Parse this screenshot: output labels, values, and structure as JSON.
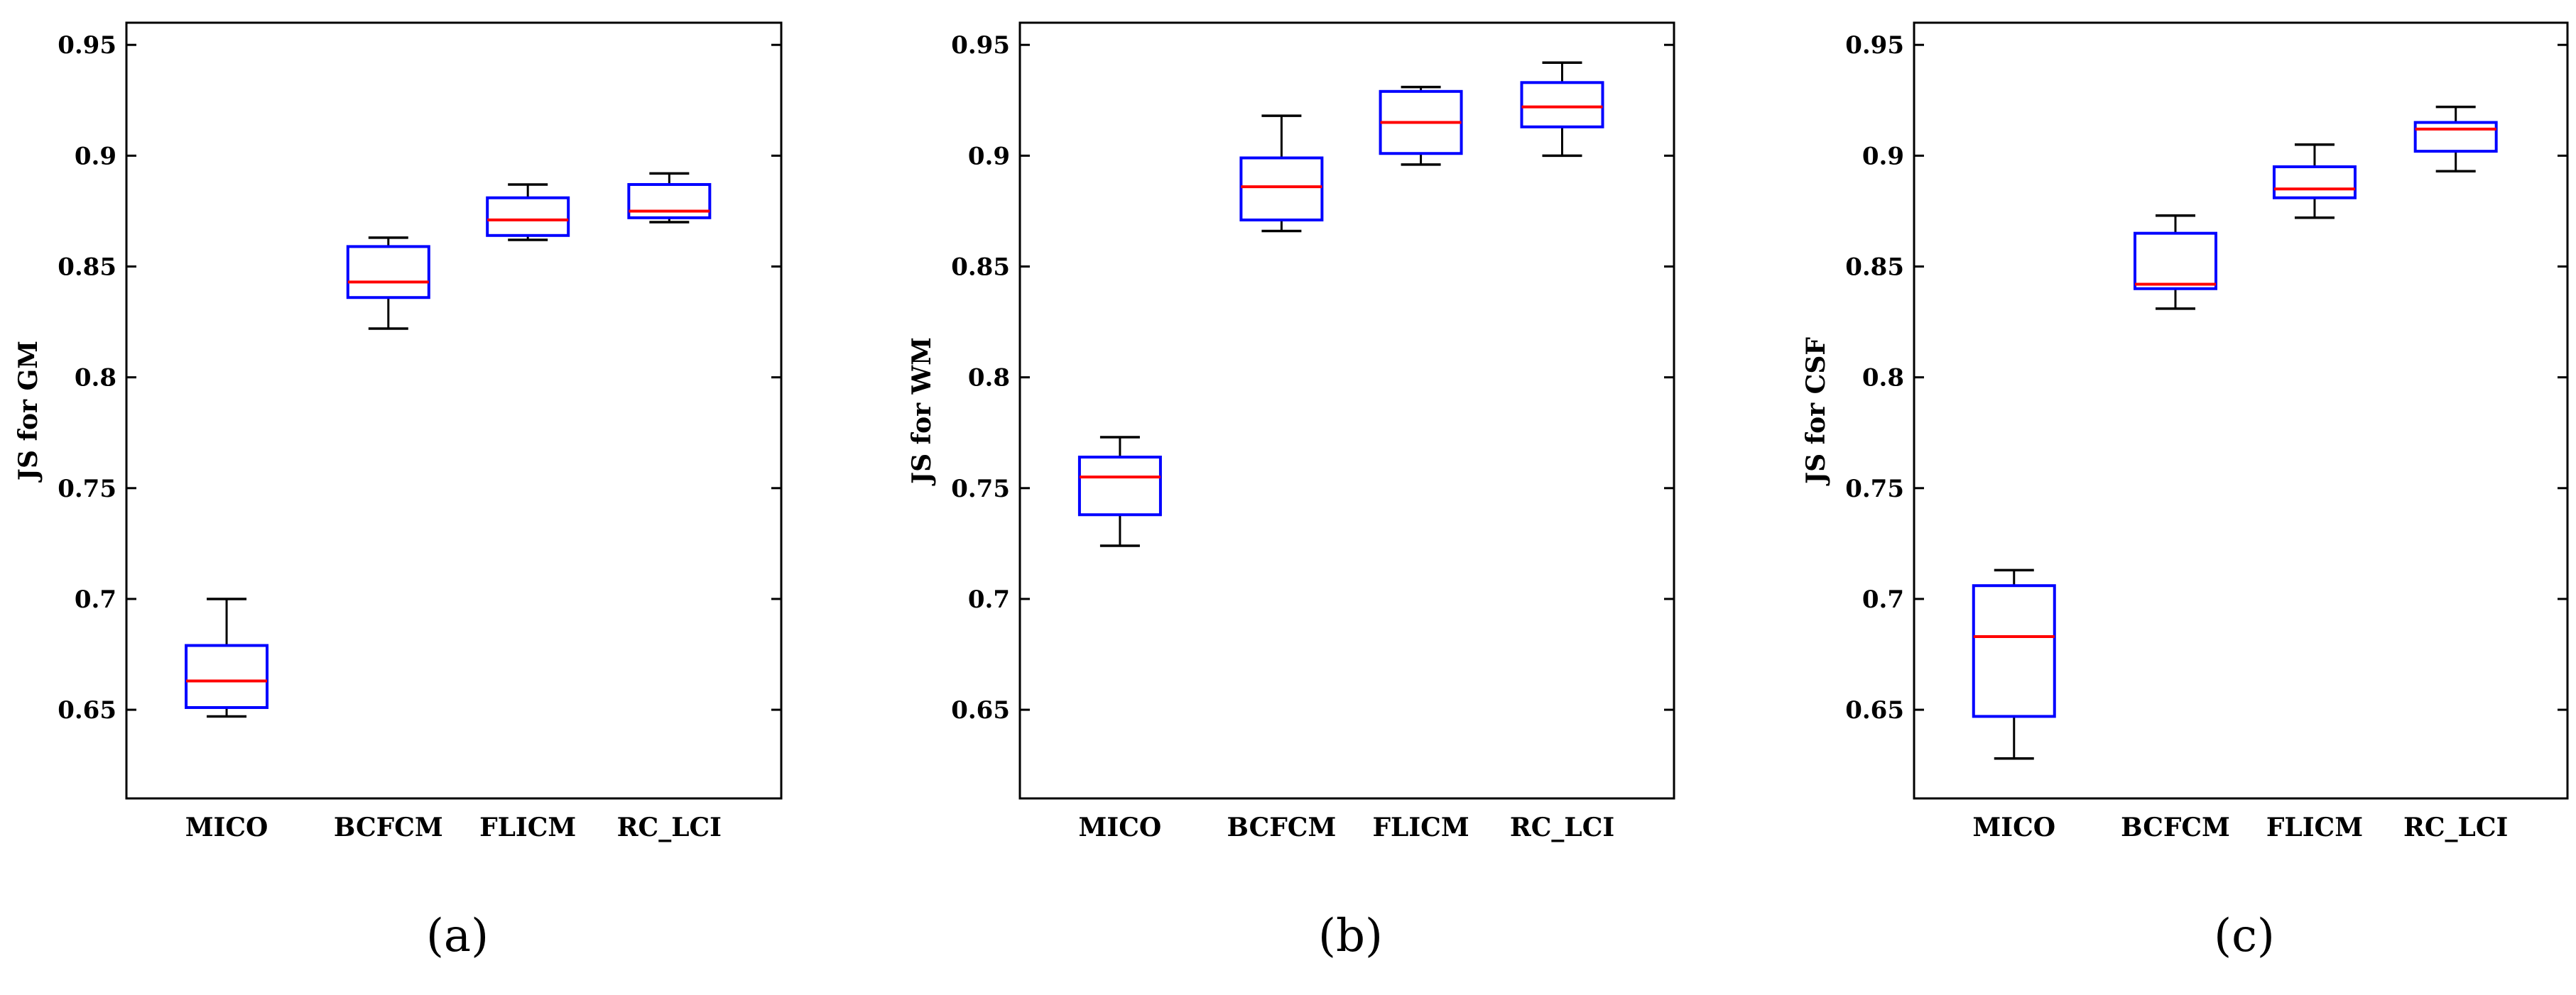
{
  "colors": {
    "box": "#0000ff",
    "median": "#ff0000",
    "whisker": "#000000",
    "frame": "#000000"
  },
  "chart_data": [
    {
      "type": "box",
      "panel_label": "(a)",
      "ylabel": "JS for GM",
      "xlabel": "",
      "categories": [
        "MICO",
        "BCFCM",
        "FLICM",
        "RC_LCI"
      ],
      "ylim": [
        0.61,
        0.96
      ],
      "yticks": [
        0.65,
        0.7,
        0.75,
        0.8,
        0.85,
        0.9,
        0.95
      ],
      "ytick_labels": [
        "0.65",
        "0.7",
        "0.75",
        "0.8",
        "0.85",
        "0.9",
        "0.95"
      ],
      "grid": false,
      "boxes": [
        {
          "min": 0.647,
          "q1": 0.651,
          "median": 0.663,
          "q3": 0.679,
          "max": 0.7
        },
        {
          "min": 0.822,
          "q1": 0.836,
          "median": 0.843,
          "q3": 0.859,
          "max": 0.863
        },
        {
          "min": 0.862,
          "q1": 0.864,
          "median": 0.871,
          "q3": 0.881,
          "max": 0.887
        },
        {
          "min": 0.87,
          "q1": 0.872,
          "median": 0.875,
          "q3": 0.887,
          "max": 0.892
        }
      ]
    },
    {
      "type": "box",
      "panel_label": "(b)",
      "ylabel": "JS for WM",
      "xlabel": "",
      "categories": [
        "MICO",
        "BCFCM",
        "FLICM",
        "RC_LCI"
      ],
      "ylim": [
        0.61,
        0.96
      ],
      "yticks": [
        0.65,
        0.7,
        0.75,
        0.8,
        0.85,
        0.9,
        0.95
      ],
      "ytick_labels": [
        "0.65",
        "0.7",
        "0.75",
        "0.8",
        "0.85",
        "0.9",
        "0.95"
      ],
      "grid": false,
      "boxes": [
        {
          "min": 0.724,
          "q1": 0.738,
          "median": 0.755,
          "q3": 0.764,
          "max": 0.773
        },
        {
          "min": 0.866,
          "q1": 0.871,
          "median": 0.886,
          "q3": 0.899,
          "max": 0.918
        },
        {
          "min": 0.896,
          "q1": 0.901,
          "median": 0.915,
          "q3": 0.929,
          "max": 0.931
        },
        {
          "min": 0.9,
          "q1": 0.913,
          "median": 0.922,
          "q3": 0.933,
          "max": 0.942
        }
      ]
    },
    {
      "type": "box",
      "panel_label": "(c)",
      "ylabel": "JS for CSF",
      "xlabel": "",
      "categories": [
        "MICO",
        "BCFCM",
        "FLICM",
        "RC_LCI"
      ],
      "ylim": [
        0.61,
        0.96
      ],
      "yticks": [
        0.65,
        0.7,
        0.75,
        0.8,
        0.85,
        0.9,
        0.95
      ],
      "ytick_labels": [
        "0.65",
        "0.7",
        "0.75",
        "0.8",
        "0.85",
        "0.9",
        "0.95"
      ],
      "grid": false,
      "boxes": [
        {
          "min": 0.628,
          "q1": 0.647,
          "median": 0.683,
          "q3": 0.706,
          "max": 0.713
        },
        {
          "min": 0.831,
          "q1": 0.84,
          "median": 0.842,
          "q3": 0.865,
          "max": 0.873
        },
        {
          "min": 0.872,
          "q1": 0.881,
          "median": 0.885,
          "q3": 0.895,
          "max": 0.905
        },
        {
          "min": 0.893,
          "q1": 0.902,
          "median": 0.912,
          "q3": 0.915,
          "max": 0.922
        }
      ]
    }
  ]
}
